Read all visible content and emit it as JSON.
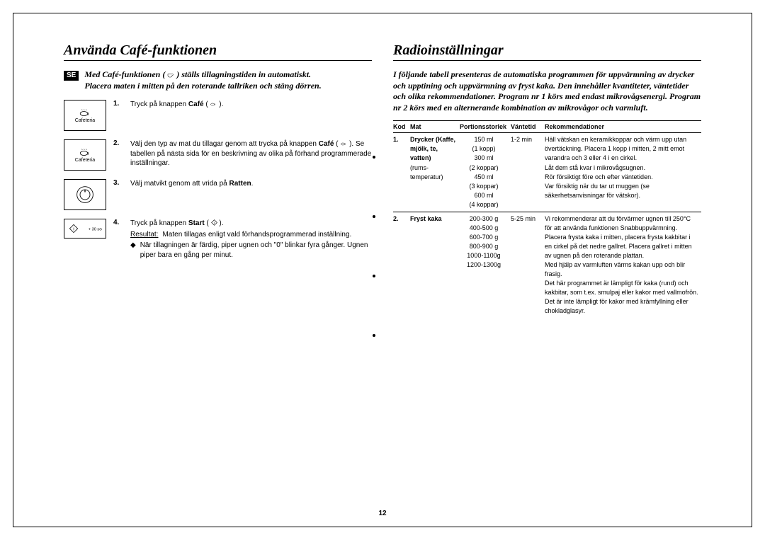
{
  "page_number": "12",
  "left": {
    "heading": "Använda Café-funktionen",
    "se_label": "SE",
    "intro_1": "Med Café-funktionen ( ",
    "intro_1b": " ) ställs tillagningstiden in automatiskt.",
    "intro_2": "Placera maten i mitten på den roterande tallriken och stäng dörren.",
    "cafeteria_label": "Cafeteria",
    "start_30": "+ 30 sec",
    "steps": [
      {
        "num": "1.",
        "text_a": "Tryck på knappen ",
        "bold1": "Café",
        "text_b": " ( ",
        "text_c": " )."
      },
      {
        "num": "2.",
        "text_a": "Välj den typ av mat du tillagar genom att trycka på knappen ",
        "bold1": "Café",
        "text_b": " ( ",
        "text_c": " ). Se tabellen på nästa sida för en beskrivning av olika på förhand programmerade inställningar."
      },
      {
        "num": "3.",
        "text_a": "Välj matvikt genom att vrida på ",
        "bold1": "Ratten",
        "text_b": "."
      },
      {
        "num": "4.",
        "text_a": "Tryck på knappen ",
        "bold1": "Start",
        "text_b": " ( ",
        "text_c": " )."
      }
    ],
    "result_label": "Resultat:",
    "result_text": "Maten tillagas enligt vald förhandsprogrammerad inställning.",
    "diamond_text": "När tillagningen är färdig, piper ugnen och \"0\" blinkar fyra gånger. Ugnen piper bara en gång per minut."
  },
  "right": {
    "heading": "Radioinställningar",
    "intro": "I följande tabell presenteras de automatiska programmen för uppvärmning av drycker och upptining och uppvärmning av fryst kaka. Den innehåller kvantiteter, väntetider och olika rekommendationer. Program nr 1 körs med endast mikrovågsenergi. Program nr 2 körs med en alternerande kombination av mikrovågor och varmluft.",
    "headers": {
      "kod": "Kod",
      "mat": "Mat",
      "portion": "Portionsstorlek",
      "vantetid": "Väntetid",
      "rek": "Rekommendationer"
    },
    "rows": [
      {
        "kod": "1.",
        "mat_bold": "Drycker (Kaffe, mjölk, te, vatten)",
        "mat_plain": "(rums-temperatur)",
        "portion": "150 ml\n(1 kopp)\n300 ml\n(2 koppar)\n450 ml\n(3 koppar)\n600 ml\n(4 koppar)",
        "vantetid": "1-2 min",
        "rec": "Häll vätskan en keramikkoppar och värm upp utan övertäckning. Placera 1 kopp i mitten, 2 mitt emot varandra och 3 eller 4 i en cirkel.\nLåt dem stå kvar i mikrovågsugnen.\nRör försiktigt före och efter väntetiden.\nVar försiktig när du tar ut muggen (se säkerhetsanvisningar för vätskor)."
      },
      {
        "kod": "2.",
        "mat_bold": "Fryst kaka",
        "mat_plain": "",
        "portion": "200-300 g\n400-500 g\n600-700 g\n800-900 g\n1000-1100g\n1200-1300g",
        "vantetid": "5-25 min",
        "rec": "Vi rekommenderar att du förvärmer ugnen till 250°C för att använda funktionen Snabbuppvärmning.\nPlacera frysta kaka i mitten, placera frysta kakbitar i en cirkel på det nedre gallret. Placera gallret i mitten av ugnen på den roterande plattan.\nMed hjälp av varmluften värms kakan upp och blir frasig.\nDet här programmet är lämpligt för kaka (rund) och kakbitar, som t.ex. smulpaj eller kakor med vallmofrön.\nDet är inte lämpligt för kakor med krämfyllning eller chokladglasyr."
      }
    ]
  }
}
